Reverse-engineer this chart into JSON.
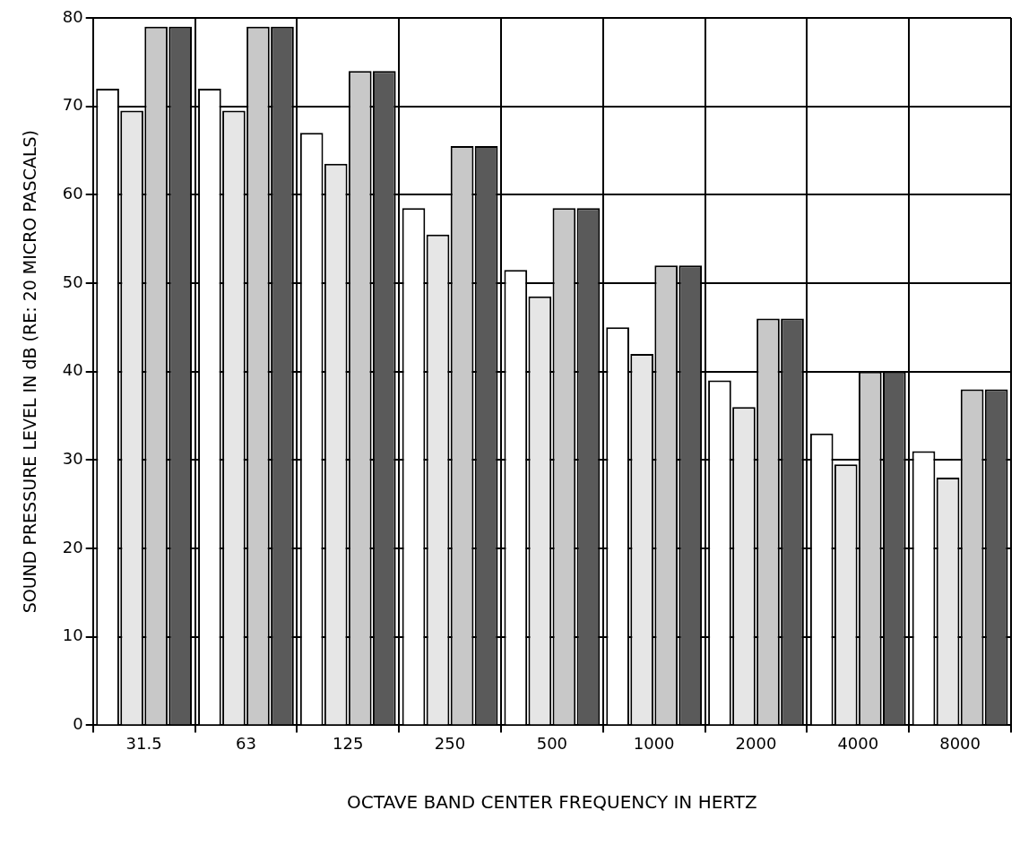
{
  "chart_data": {
    "type": "bar",
    "xlabel": "OCTAVE BAND CENTER FREQUENCY IN HERTZ",
    "ylabel": "SOUND PRESSURE LEVEL IN dB (RE: 20 MICRO PASCALS)",
    "categories": [
      "31.5",
      "63",
      "125",
      "250",
      "500",
      "1000",
      "2000",
      "4000",
      "8000"
    ],
    "series": [
      {
        "color": "#ffffff",
        "values": [
          72,
          72,
          67,
          58.5,
          51.5,
          45,
          39,
          33,
          31
        ]
      },
      {
        "color": "#e6e6e6",
        "values": [
          69.5,
          69.5,
          63.5,
          55.5,
          48.5,
          42,
          36,
          29.5,
          28
        ]
      },
      {
        "color": "#c8c8c8",
        "values": [
          79,
          79,
          74,
          65.5,
          58.5,
          52,
          46,
          40,
          38
        ]
      },
      {
        "color": "#5a5a5a",
        "values": [
          79,
          79,
          74,
          65.5,
          58.5,
          52,
          46,
          40,
          38
        ]
      }
    ],
    "ylim": [
      0,
      80
    ],
    "yticks": [
      0,
      10,
      20,
      30,
      40,
      50,
      60,
      70,
      80
    ],
    "grid": true,
    "legend": false
  }
}
